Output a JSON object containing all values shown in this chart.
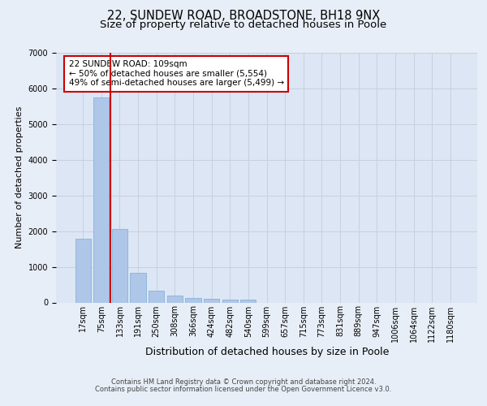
{
  "title_line1": "22, SUNDEW ROAD, BROADSTONE, BH18 9NX",
  "title_line2": "Size of property relative to detached houses in Poole",
  "xlabel": "Distribution of detached houses by size in Poole",
  "ylabel": "Number of detached properties",
  "footnote1": "Contains HM Land Registry data © Crown copyright and database right 2024.",
  "footnote2": "Contains public sector information licensed under the Open Government Licence v3.0.",
  "annotation_line1": "22 SUNDEW ROAD: 109sqm",
  "annotation_line2": "← 50% of detached houses are smaller (5,554)",
  "annotation_line3": "49% of semi-detached houses are larger (5,499) →",
  "bar_values": [
    1780,
    5750,
    2060,
    820,
    340,
    195,
    120,
    100,
    90,
    80,
    0,
    0,
    0,
    0,
    0,
    0,
    0,
    0,
    0,
    0,
    0
  ],
  "categories": [
    "17sqm",
    "75sqm",
    "133sqm",
    "191sqm",
    "250sqm",
    "308sqm",
    "366sqm",
    "424sqm",
    "482sqm",
    "540sqm",
    "599sqm",
    "657sqm",
    "715sqm",
    "773sqm",
    "831sqm",
    "889sqm",
    "947sqm",
    "1006sqm",
    "1064sqm",
    "1122sqm",
    "1180sqm"
  ],
  "bar_color": "#aec6e8",
  "bar_edge_color": "#7aaed4",
  "vline_x": 1.5,
  "vline_color": "#cc0000",
  "annotation_box_color": "#cc0000",
  "ylim": [
    0,
    7000
  ],
  "yticks": [
    0,
    1000,
    2000,
    3000,
    4000,
    5000,
    6000,
    7000
  ],
  "grid_color": "#c8d0dc",
  "bg_color": "#e8eef7",
  "plot_bg_color": "#dce6f5",
  "title_fontsize": 10.5,
  "subtitle_fontsize": 9.5,
  "ylabel_fontsize": 8,
  "xlabel_fontsize": 9,
  "tick_fontsize": 7,
  "footnote_fontsize": 6,
  "annotation_fontsize": 7.5
}
